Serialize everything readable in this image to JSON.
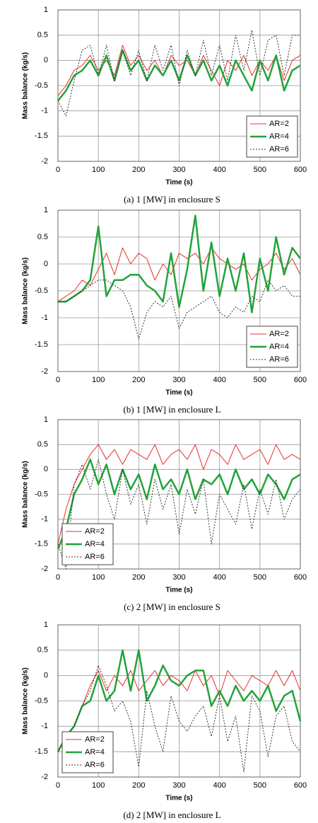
{
  "chart_data": [
    {
      "type": "line",
      "caption": "(a) 1 [MW] in enclosure S",
      "xlabel": "Time (s)",
      "ylabel": "Mass balance (kg/s)",
      "x": [
        0,
        20,
        40,
        60,
        80,
        100,
        120,
        140,
        160,
        180,
        200,
        220,
        240,
        260,
        280,
        300,
        320,
        340,
        360,
        380,
        400,
        420,
        440,
        460,
        480,
        500,
        520,
        540,
        560,
        580,
        600
      ],
      "xlim": [
        0,
        600
      ],
      "ylim": [
        -2,
        1
      ],
      "xticks": [
        0,
        100,
        200,
        300,
        400,
        500,
        600
      ],
      "yticks": [
        -2,
        -1.5,
        -1,
        -0.5,
        0,
        0.5,
        1
      ],
      "grid": true,
      "legend": "lower right",
      "series": [
        {
          "name": "AR=2",
          "color": "#e3312c",
          "linewidth": 1,
          "linestyle": "solid",
          "values": [
            -0.7,
            -0.5,
            -0.2,
            -0.1,
            0.1,
            -0.2,
            0.0,
            -0.3,
            0.3,
            -0.1,
            0.1,
            -0.2,
            0.0,
            -0.3,
            0.1,
            -0.1,
            0.0,
            -0.3,
            0.1,
            -0.2,
            -0.5,
            0.0,
            -0.2,
            0.1,
            -0.3,
            0.0,
            -0.2,
            0.1,
            -0.4,
            0.0,
            0.1
          ]
        },
        {
          "name": "AR=4",
          "color": "#22a33a",
          "linewidth": 2.5,
          "linestyle": "solid",
          "values": [
            -0.8,
            -0.6,
            -0.3,
            -0.2,
            0.0,
            -0.3,
            0.1,
            -0.4,
            0.2,
            -0.2,
            0.0,
            -0.4,
            -0.1,
            -0.3,
            0.0,
            -0.4,
            0.1,
            -0.3,
            0.0,
            -0.4,
            -0.1,
            -0.5,
            0.0,
            -0.3,
            -0.6,
            0.0,
            -0.4,
            0.1,
            -0.6,
            -0.2,
            -0.1
          ]
        },
        {
          "name": "AR=6",
          "color": "#333333",
          "linewidth": 1,
          "linestyle": "dotted",
          "values": [
            -0.8,
            -1.1,
            -0.4,
            0.2,
            0.3,
            -0.3,
            0.3,
            -0.4,
            0.2,
            -0.3,
            0.2,
            -0.4,
            0.3,
            -0.2,
            0.3,
            -0.5,
            0.2,
            -0.3,
            0.4,
            -0.3,
            0.3,
            -0.4,
            0.5,
            -0.2,
            0.6,
            -0.3,
            0.4,
            0.5,
            -0.3,
            0.5,
            0.5
          ]
        }
      ]
    },
    {
      "type": "line",
      "caption": "(b) 1 [MW] in enclosure L",
      "xlabel": "Time (s)",
      "ylabel": "Mass balance (kg/s)",
      "x": [
        0,
        20,
        40,
        60,
        80,
        100,
        120,
        140,
        160,
        180,
        200,
        220,
        240,
        260,
        280,
        300,
        320,
        340,
        360,
        380,
        400,
        420,
        440,
        460,
        480,
        500,
        520,
        540,
        560,
        580,
        600
      ],
      "xlim": [
        0,
        600
      ],
      "ylim": [
        -2,
        1
      ],
      "xticks": [
        0,
        100,
        200,
        300,
        400,
        500,
        600
      ],
      "yticks": [
        -2,
        -1.5,
        -1,
        -0.5,
        0,
        0.5,
        1
      ],
      "grid": true,
      "legend": "lower right",
      "series": [
        {
          "name": "AR=2",
          "color": "#e3312c",
          "linewidth": 1,
          "linestyle": "solid",
          "values": [
            -0.7,
            -0.6,
            -0.5,
            -0.3,
            -0.4,
            -0.1,
            0.2,
            -0.2,
            0.3,
            0.0,
            0.2,
            0.1,
            -0.3,
            0.0,
            -0.2,
            0.2,
            0.1,
            0.2,
            0.0,
            0.3,
            0.1,
            0.0,
            -0.1,
            0.0,
            -0.3,
            -0.1,
            0.0,
            0.2,
            -0.1,
            0.1,
            -0.2
          ]
        },
        {
          "name": "AR=4",
          "color": "#22a33a",
          "linewidth": 2.5,
          "linestyle": "solid",
          "values": [
            -0.7,
            -0.7,
            -0.6,
            -0.5,
            -0.3,
            0.7,
            -0.6,
            -0.3,
            -0.3,
            -0.2,
            -0.2,
            -0.4,
            -0.5,
            -0.7,
            0.2,
            -0.8,
            -0.1,
            0.9,
            -0.5,
            0.4,
            -0.6,
            0.1,
            -0.5,
            0.2,
            -0.9,
            0.1,
            -0.5,
            0.5,
            -0.2,
            0.3,
            0.1
          ]
        },
        {
          "name": "AR=6",
          "color": "#333333",
          "linewidth": 1,
          "linestyle": "dotted",
          "values": [
            -0.7,
            -0.7,
            -0.6,
            -0.5,
            -0.4,
            -0.3,
            -0.3,
            -0.4,
            -0.5,
            -0.8,
            -1.4,
            -0.9,
            -0.7,
            -0.8,
            -0.6,
            -1.2,
            -0.9,
            -0.8,
            -0.7,
            -0.6,
            -0.9,
            -1.0,
            -0.8,
            -0.9,
            -0.6,
            -0.7,
            -0.3,
            -0.5,
            -0.4,
            -0.6,
            -0.6
          ]
        }
      ]
    },
    {
      "type": "line",
      "caption": "(c) 2 [MW] in enclosure S",
      "xlabel": "Time (s)",
      "ylabel": "Mass balance (kg/s)",
      "x": [
        0,
        20,
        40,
        60,
        80,
        100,
        120,
        140,
        160,
        180,
        200,
        220,
        240,
        260,
        280,
        300,
        320,
        340,
        360,
        380,
        400,
        420,
        440,
        460,
        480,
        500,
        520,
        540,
        560,
        580,
        600
      ],
      "xlim": [
        0,
        600
      ],
      "ylim": [
        -2,
        1
      ],
      "xticks": [
        0,
        100,
        200,
        300,
        400,
        500,
        600
      ],
      "yticks": [
        -2,
        -1.5,
        -1,
        -0.5,
        0,
        0.5,
        1
      ],
      "grid": true,
      "legend": "lower left",
      "series": [
        {
          "name": "AR=2",
          "color": "#e3312c",
          "linewidth": 1,
          "linestyle": "solid",
          "values": [
            -1.5,
            -0.8,
            -0.3,
            0.0,
            0.3,
            0.5,
            0.2,
            0.4,
            0.1,
            0.4,
            0.3,
            0.2,
            0.5,
            0.1,
            0.3,
            0.4,
            0.2,
            0.5,
            0.0,
            0.4,
            0.3,
            0.1,
            0.5,
            0.2,
            0.3,
            0.4,
            0.1,
            0.5,
            0.2,
            0.3,
            0.2
          ]
        },
        {
          "name": "AR=4",
          "color": "#22a33a",
          "linewidth": 2.5,
          "linestyle": "solid",
          "values": [
            -1.6,
            -1.2,
            -0.5,
            -0.2,
            0.2,
            -0.3,
            0.1,
            -0.5,
            0.0,
            -0.4,
            -0.1,
            -0.6,
            0.1,
            -0.4,
            -0.2,
            -0.5,
            0.0,
            -0.6,
            -0.2,
            -0.3,
            -0.1,
            -0.5,
            0.0,
            -0.4,
            -0.2,
            -0.5,
            -0.1,
            -0.3,
            -0.6,
            -0.2,
            -0.1
          ]
        },
        {
          "name": "AR=6",
          "color": "#333333",
          "linewidth": 1,
          "linestyle": "dotted",
          "values": [
            -1.5,
            -2.0,
            -0.3,
            0.1,
            -0.4,
            0.2,
            -0.5,
            -1.0,
            0.0,
            -0.7,
            -0.3,
            -1.1,
            -0.2,
            -0.8,
            -0.3,
            -1.3,
            -0.4,
            -0.9,
            -0.2,
            -1.5,
            -0.5,
            -0.8,
            -1.1,
            -0.3,
            -1.2,
            -0.4,
            -0.9,
            -0.2,
            -1.0,
            -0.6,
            -0.4
          ]
        }
      ]
    },
    {
      "type": "line",
      "caption": "(d) 2 [MW] in enclosure L",
      "xlabel": "Time (s)",
      "ylabel": "Mass balance (kg/s)",
      "x": [
        0,
        20,
        40,
        60,
        80,
        100,
        120,
        140,
        160,
        180,
        200,
        220,
        240,
        260,
        280,
        300,
        320,
        340,
        360,
        380,
        400,
        420,
        440,
        460,
        480,
        500,
        520,
        540,
        560,
        580,
        600
      ],
      "xlim": [
        0,
        600
      ],
      "ylim": [
        -2,
        1
      ],
      "xticks": [
        0,
        100,
        200,
        300,
        400,
        500,
        600
      ],
      "yticks": [
        -2,
        -1.5,
        -1,
        -0.5,
        0,
        0.5,
        1
      ],
      "grid": true,
      "legend": "lower left",
      "series": [
        {
          "name": "AR=2",
          "color": "#e3312c",
          "linewidth": 1,
          "linestyle": "solid",
          "values": [
            -1.5,
            -1.2,
            -1.0,
            -0.6,
            -0.2,
            0.1,
            -0.3,
            0.0,
            -0.2,
            0.1,
            -0.3,
            -0.1,
            0.1,
            -0.2,
            0.0,
            -0.1,
            -0.3,
            0.1,
            -0.2,
            0.0,
            -0.4,
            0.1,
            -0.1,
            -0.3,
            0.0,
            -0.1,
            -0.2,
            0.1,
            -0.2,
            0.1,
            -0.3
          ]
        },
        {
          "name": "AR=4",
          "color": "#22a33a",
          "linewidth": 2.5,
          "linestyle": "solid",
          "values": [
            -1.5,
            -1.2,
            -1.0,
            -0.6,
            -0.5,
            0.0,
            -0.5,
            -0.3,
            0.5,
            -0.3,
            0.5,
            -0.5,
            -0.2,
            0.2,
            -0.1,
            -0.2,
            0.0,
            0.1,
            0.1,
            -0.6,
            -0.3,
            -0.6,
            -0.2,
            -0.5,
            -0.3,
            -0.5,
            -0.2,
            -0.7,
            -0.4,
            -0.3,
            -0.9
          ]
        },
        {
          "name": "AR=6",
          "color": "#333333",
          "linewidth": 1,
          "linestyle": "dotted",
          "values": [
            -1.5,
            -1.2,
            -1.0,
            -0.6,
            -0.3,
            0.2,
            -0.2,
            -0.7,
            -0.5,
            -0.9,
            -1.8,
            -0.3,
            -1.0,
            -1.5,
            -0.4,
            -0.9,
            -1.1,
            -0.8,
            -0.6,
            -1.2,
            -0.4,
            -1.3,
            -0.8,
            -1.9,
            -0.4,
            -0.7,
            -1.6,
            -0.8,
            -0.6,
            -1.3,
            -1.5
          ]
        }
      ]
    }
  ]
}
